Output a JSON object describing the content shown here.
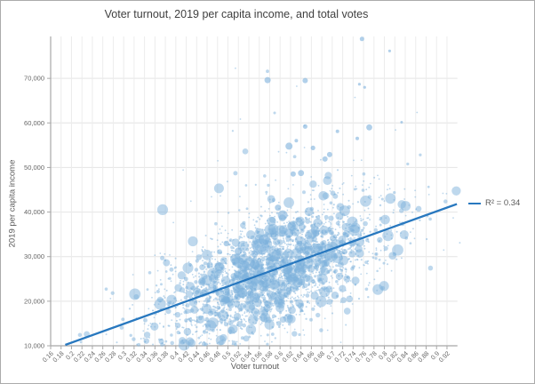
{
  "colors": {
    "point": "#7db1dc",
    "trendline": "#2878bf",
    "grid_vertical": "#ececec",
    "grid_horizontal": "#e4e4e4",
    "axis": "#a8a8a8",
    "tick_text": "#666666",
    "title_text": "#404040",
    "axis_title_text": "#595959",
    "window_border": "#ababab",
    "background": "#ffffff"
  },
  "chart_data": {
    "type": "scatter",
    "title": "Voter turnout, 2019 per capita income, and total votes",
    "xlabel": "Voter turnout",
    "ylabel": "2019 per capita income",
    "bubble_size_represents": "total votes",
    "grid": true,
    "legend_position": "right-of-plot",
    "xlim": [
      0.16,
      0.94
    ],
    "ylim": [
      10000,
      79400
    ],
    "x_ticks": [
      0.16,
      0.18,
      0.2,
      0.22,
      0.24,
      0.26,
      0.28,
      0.3,
      0.32,
      0.34,
      0.36,
      0.38,
      0.4,
      0.42,
      0.44,
      0.46,
      0.48,
      0.5,
      0.52,
      0.54,
      0.56,
      0.58,
      0.6,
      0.62,
      0.64,
      0.66,
      0.68,
      0.7,
      0.72,
      0.74,
      0.76,
      0.78,
      0.8,
      0.82,
      0.84,
      0.86,
      0.88,
      0.9,
      0.92
    ],
    "x_tick_labels": [
      "0.16",
      "0.18",
      "0.2",
      "0.22",
      "0.24",
      "0.26",
      "0.28",
      "0.3",
      "0.32",
      "0.34",
      "0.36",
      "0.38",
      "0.4",
      "0.42",
      "0.44",
      "0.46",
      "0.48",
      "0.5",
      "0.52",
      "0.54",
      "0.56",
      "0.58",
      "0.6",
      "0.62",
      "0.64",
      "0.66",
      "0.68",
      "0.7",
      "0.72",
      "0.74",
      "0.76",
      "0.78",
      "0.8",
      "0.82",
      "0.84",
      "0.86",
      "0.88",
      "0.9",
      "0.92"
    ],
    "y_ticks": [
      10000,
      20000,
      30000,
      40000,
      50000,
      60000,
      70000
    ],
    "y_tick_labels": [
      "10,000",
      "20,000",
      "30,000",
      "40,000",
      "50,000",
      "60,000",
      "70,000"
    ],
    "trendline": {
      "label": "R² = 0.34",
      "r_squared": 0.34,
      "x1": 0.188,
      "y1": 10200,
      "x2": 0.939,
      "y2": 41800
    },
    "notable_points": [
      {
        "x": 0.563,
        "y": 32250,
        "r": 9.2
      },
      {
        "x": 0.569,
        "y": 33800,
        "r": 6.0
      },
      {
        "x": 0.605,
        "y": 39300,
        "r": 5.5
      },
      {
        "x": 0.596,
        "y": 41000,
        "r": 3.5
      },
      {
        "x": 0.617,
        "y": 35250,
        "r": 5.0
      },
      {
        "x": 0.551,
        "y": 30650,
        "r": 4.0
      },
      {
        "x": 0.52,
        "y": 31200,
        "r": 4.2
      },
      {
        "x": 0.497,
        "y": 32950,
        "r": 3.2
      },
      {
        "x": 0.617,
        "y": 54800,
        "r": 4.0
      },
      {
        "x": 0.576,
        "y": 69600,
        "r": 3.5
      },
      {
        "x": 0.648,
        "y": 69500,
        "r": 3.0
      },
      {
        "x": 0.757,
        "y": 78850,
        "r": 2.5
      },
      {
        "x": 0.81,
        "y": 76150,
        "r": 1.6
      },
      {
        "x": 0.648,
        "y": 59200,
        "r": 2.6
      },
      {
        "x": 0.771,
        "y": 59000,
        "r": 3.4
      },
      {
        "x": 0.71,
        "y": 58100,
        "r": 2.0
      },
      {
        "x": 0.833,
        "y": 60150,
        "r": 1.5
      },
      {
        "x": 0.752,
        "y": 68700,
        "r": 1.6
      },
      {
        "x": 0.762,
        "y": 68000,
        "r": 1.6
      },
      {
        "x": 0.663,
        "y": 54400,
        "r": 2.6
      },
      {
        "x": 0.631,
        "y": 56000,
        "r": 2.0
      },
      {
        "x": 0.695,
        "y": 52900,
        "r": 3.0
      },
      {
        "x": 0.686,
        "y": 51900,
        "r": 3.0
      },
      {
        "x": 0.64,
        "y": 48750,
        "r": 3.4
      },
      {
        "x": 0.625,
        "y": 48550,
        "r": 3.0
      },
      {
        "x": 0.748,
        "y": 56500,
        "r": 2.0
      }
    ],
    "point_cloud_model": {
      "note": "approx 2700 unlabeled points too dense to resolve individually; regenerated from a seeded statistical model matching the visible distribution",
      "seed": 7,
      "count": 2700,
      "x_mean": 0.585,
      "x_std": 0.105,
      "y_mean": 26500,
      "y_std": 7600,
      "correlation": 0.58,
      "upper_tail_prob": 0.055,
      "upper_tail_scale": 9500,
      "x_clamp": [
        0.205,
        0.945
      ],
      "y_clamp": [
        10150,
        79000
      ],
      "radius_base": 0.9,
      "radius_spread": 5.6,
      "radius_power": 7
    }
  }
}
